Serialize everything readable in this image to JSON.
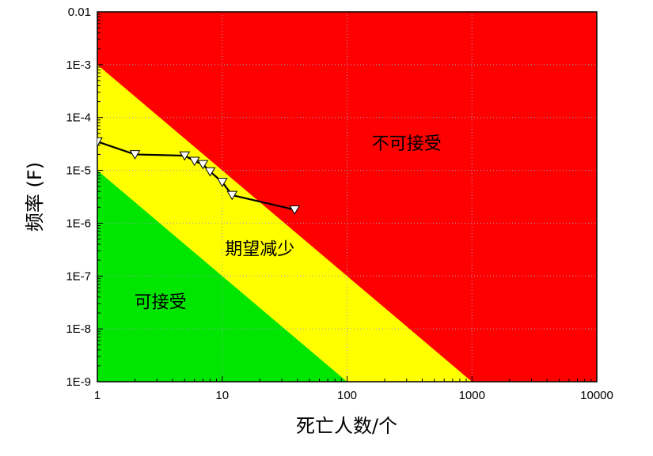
{
  "chart_data": {
    "type": "line",
    "title": "",
    "xlabel": "死亡人数/个",
    "ylabel": "频率 (F)",
    "x_scale": "log",
    "y_scale": "log",
    "xlim": [
      1,
      10000
    ],
    "ylim": [
      1e-09,
      0.01
    ],
    "x_ticks": [
      1,
      10,
      100,
      1000,
      10000
    ],
    "x_tick_labels": [
      "1",
      "10",
      "100",
      "1000",
      "10000"
    ],
    "y_ticks": [
      0.01,
      0.001,
      0.0001,
      1e-05,
      1e-06,
      1e-07,
      1e-08,
      1e-09
    ],
    "y_tick_labels": [
      "0.01",
      "1E-3",
      "1E-4",
      "1E-5",
      "1E-6",
      "1E-7",
      "1E-8",
      "1E-9"
    ],
    "grid": true,
    "regions": [
      {
        "label": "不可接受",
        "color": "#ff0000",
        "label_x": 300,
        "label_y": 2.5e-05
      },
      {
        "label": "期望减少",
        "color": "#ffff00",
        "label_x": 20,
        "label_y": 2.5e-07,
        "upper_boundary": [
          [
            1,
            0.001
          ],
          [
            1000,
            1e-09
          ]
        ]
      },
      {
        "label": "可接受",
        "color": "#00e600",
        "label_x": 3.2,
        "label_y": 2.5e-08,
        "upper_boundary": [
          [
            1,
            1e-05
          ],
          [
            100,
            1e-09
          ]
        ]
      }
    ],
    "series": [
      {
        "marker": "triangle-down",
        "color": "#000000",
        "x": [
          1,
          2,
          5,
          6,
          7,
          8,
          10,
          12,
          38
        ],
        "y": [
          3.5e-05,
          2e-05,
          1.9e-05,
          1.5e-05,
          1.3e-05,
          9.5e-06,
          6e-06,
          3.4e-06,
          1.8e-06
        ]
      }
    ]
  }
}
